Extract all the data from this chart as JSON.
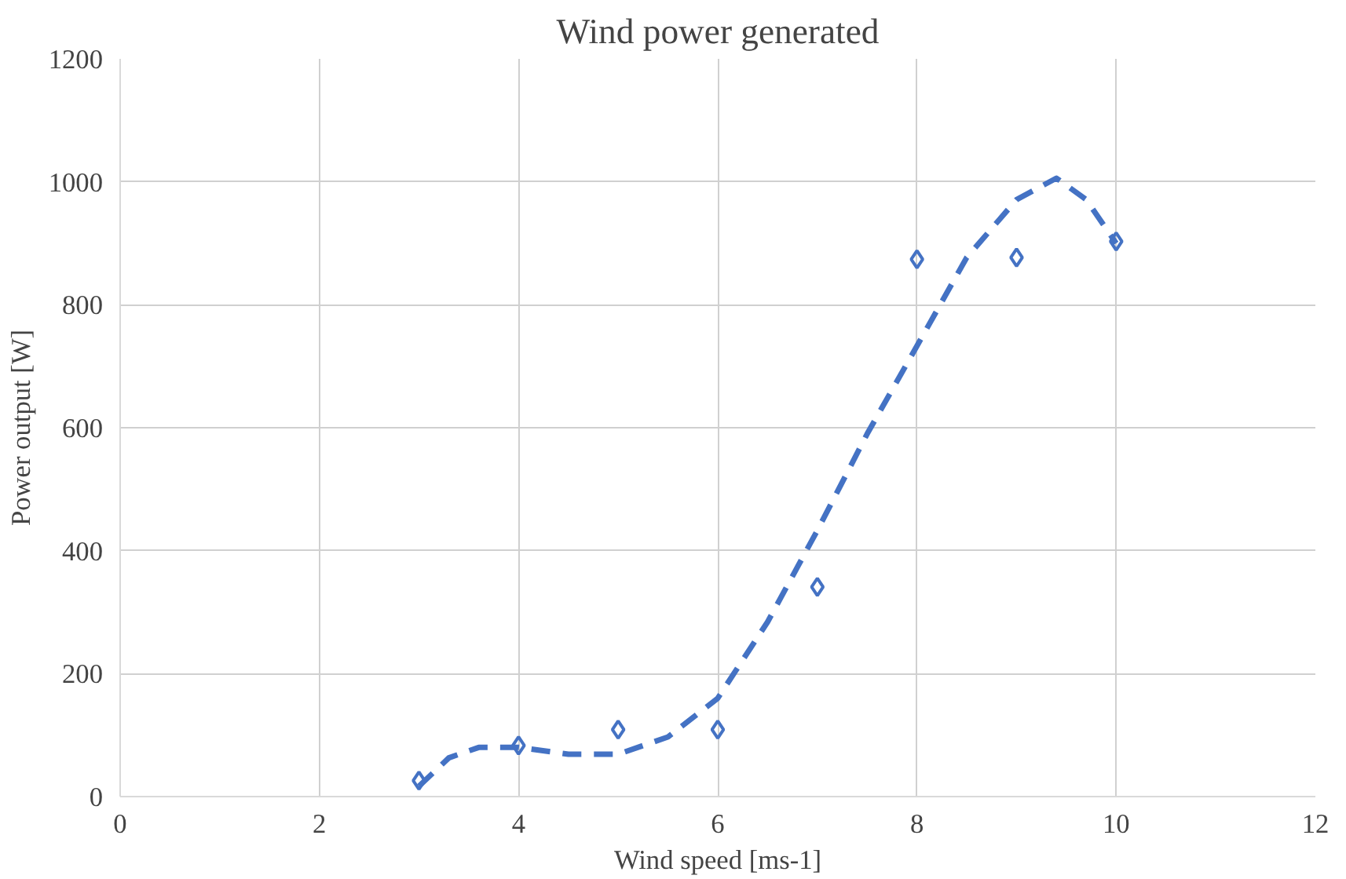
{
  "chart_data": {
    "type": "scatter",
    "title": "Wind power generated",
    "xlabel": "Wind speed [ms-1]",
    "ylabel": "Power output [W]",
    "xlim": [
      0,
      12
    ],
    "xticks": [
      0,
      2,
      4,
      6,
      8,
      10,
      12
    ],
    "ylim": [
      0,
      1200
    ],
    "yticks": [
      0,
      200,
      400,
      600,
      800,
      1000,
      1200
    ],
    "grid": true,
    "series": [
      {
        "color": "#4472c4",
        "marker": "diamond",
        "x": [
          3,
          4,
          5,
          6,
          7,
          8,
          9,
          10
        ],
        "values": [
          26,
          83,
          109,
          109,
          341,
          874,
          877,
          903
        ]
      },
      {
        "type": "line",
        "color": "#4472c4",
        "marker": "none",
        "line_style": "dashed",
        "x": [
          3,
          3.3,
          3.6,
          4,
          4.5,
          5,
          5.5,
          6,
          6.5,
          7,
          7.5,
          8,
          8.5,
          9,
          9.4,
          9.7,
          10
        ],
        "values": [
          17,
          63,
          80,
          80,
          69,
          69,
          97,
          160,
          284,
          433,
          590,
          733,
          877,
          971,
          1006,
          971,
          900
        ]
      }
    ]
  }
}
